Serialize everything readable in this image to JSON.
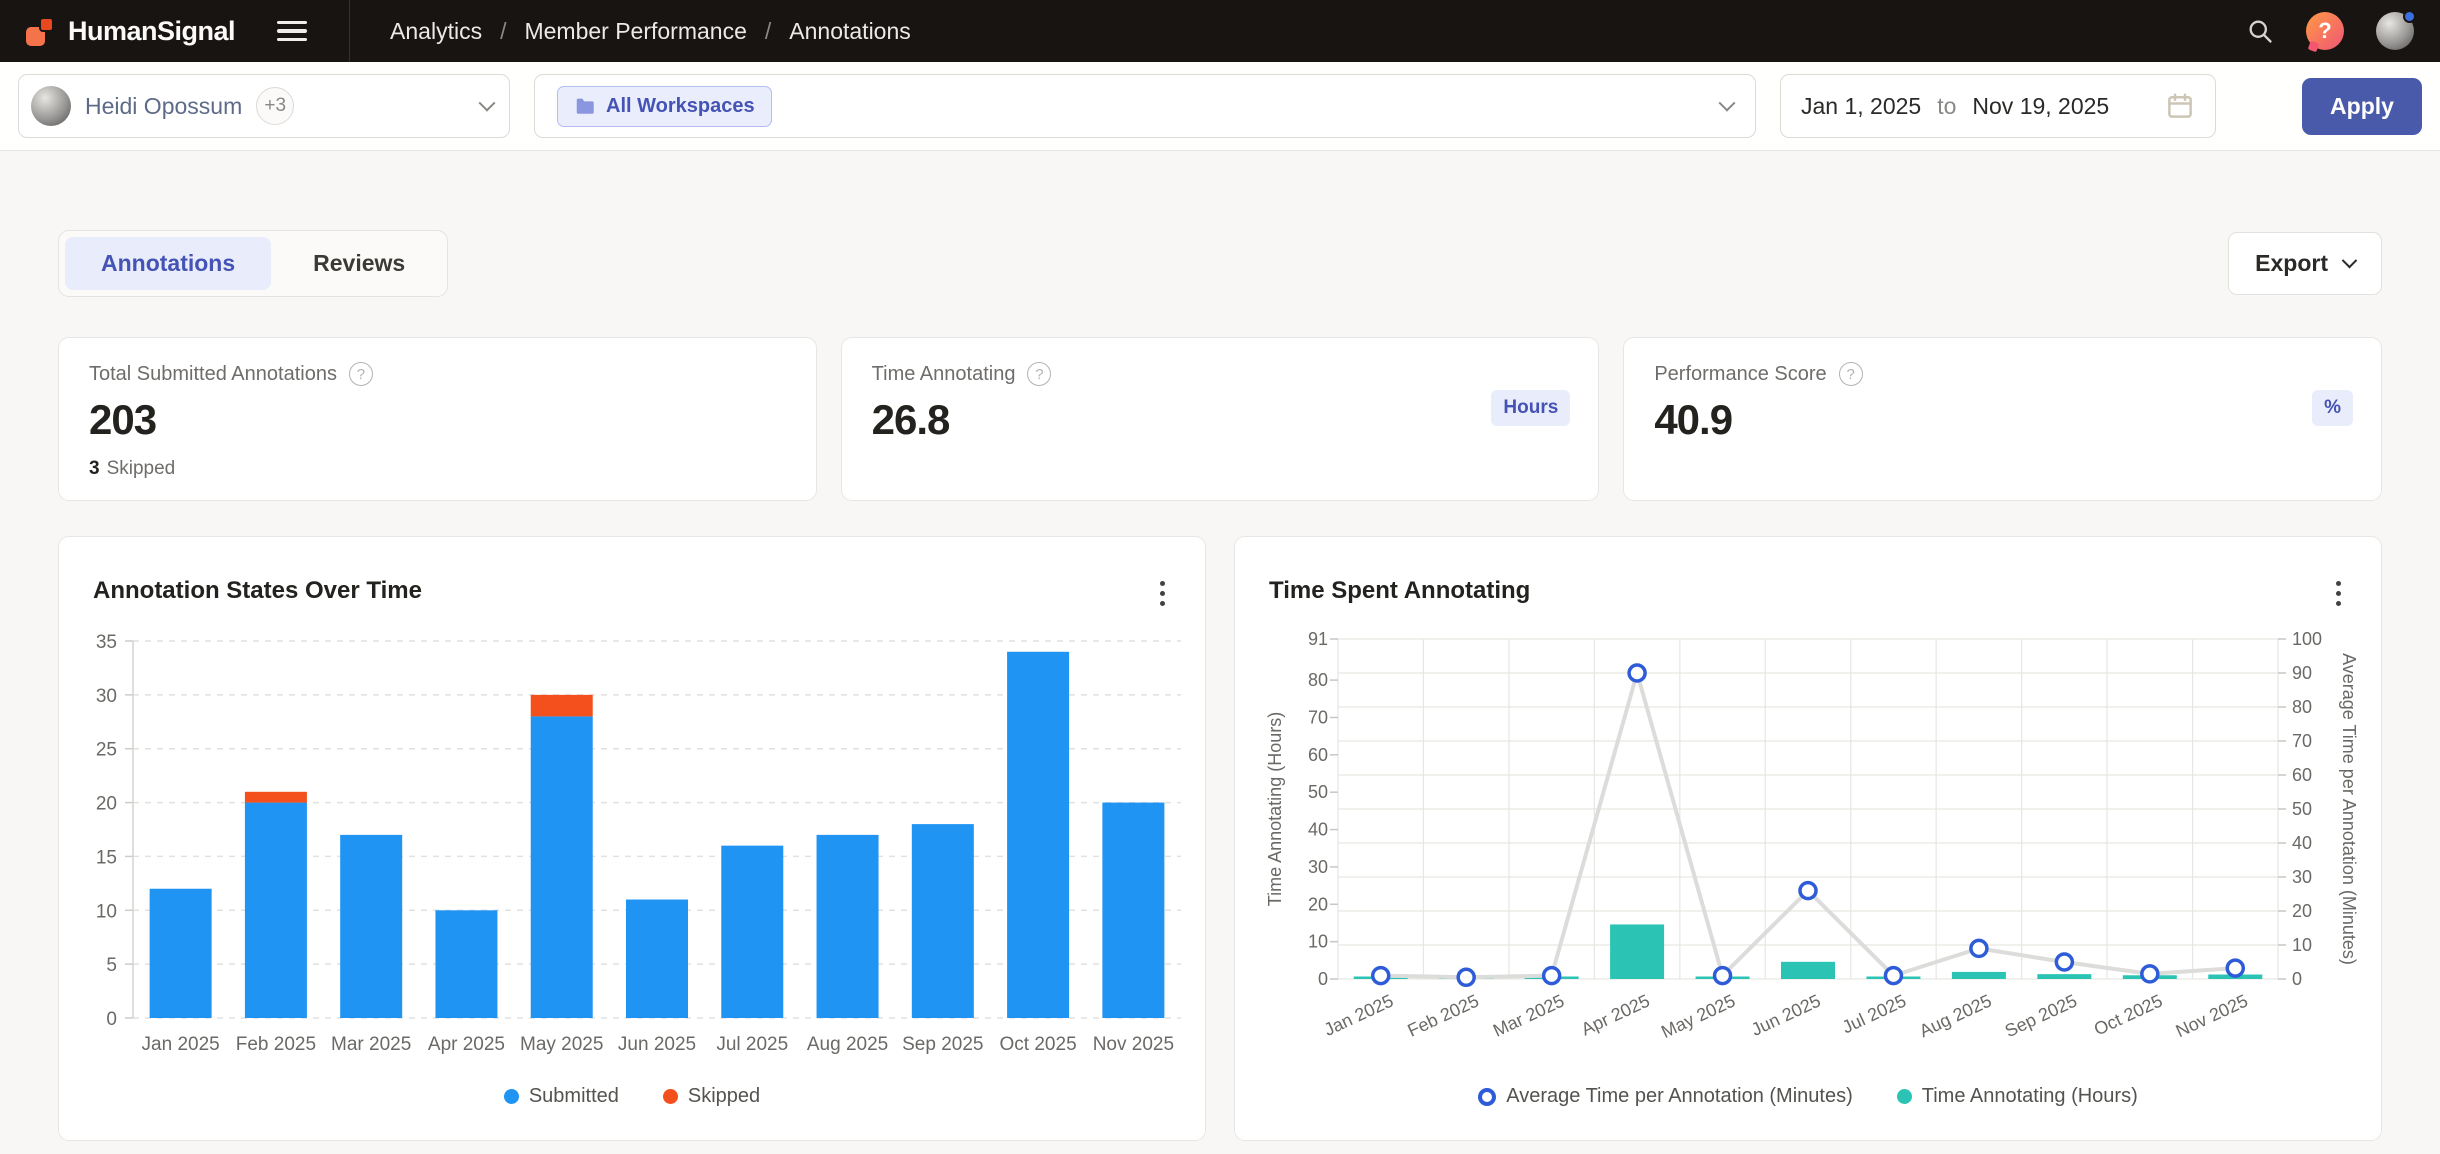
{
  "help_glyph": "?",
  "navbar": {
    "brand": "HumanSignal",
    "breadcrumb": [
      "Analytics",
      "Member Performance",
      "Annotations"
    ],
    "separator": "/"
  },
  "filters": {
    "member": {
      "name": "Heidi Opossum",
      "extra_badge": "+3"
    },
    "workspace": {
      "chip": "All Workspaces"
    },
    "date_range": {
      "start": "Jan 1, 2025",
      "to_label": "to",
      "end": "Nov 19, 2025"
    },
    "apply_label": "Apply"
  },
  "tabs": [
    {
      "label": "Annotations",
      "active": true
    },
    {
      "label": "Reviews",
      "active": false
    }
  ],
  "export_label": "Export",
  "stat_cards": [
    {
      "label": "Total Submitted Annotations",
      "value": "203",
      "footnote_value": "3",
      "footnote_label": "Skipped"
    },
    {
      "label": "Time Annotating",
      "value": "26.8",
      "badge": "Hours"
    },
    {
      "label": "Performance Score",
      "value": "40.9",
      "badge": "%"
    }
  ],
  "colors": {
    "navbar_bg": "#171412",
    "page_bg": "#f8f7f5",
    "accent_indigo": "#4a5aab",
    "chip_indigo_bg": "#eaedfb",
    "chip_indigo_text": "#4553b4",
    "submitted_blue": "#2094f3",
    "skipped_orange": "#f4501e",
    "teal": "#2bc4b4",
    "line_gray": "#dcdcda",
    "marker_blue": "#2e5bd7"
  },
  "chart_data": [
    {
      "type": "bar",
      "title": "Annotation States Over Time",
      "categories": [
        "Jan 2025",
        "Feb 2025",
        "Mar 2025",
        "Apr 2025",
        "May 2025",
        "Jun 2025",
        "Jul 2025",
        "Aug 2025",
        "Sep 2025",
        "Oct 2025",
        "Nov 2025"
      ],
      "stacked": true,
      "series": [
        {
          "name": "Submitted",
          "color": "#2094f3",
          "marker": "dot",
          "values": [
            12,
            20,
            17,
            10,
            28,
            11,
            16,
            17,
            18,
            34,
            20
          ]
        },
        {
          "name": "Skipped",
          "color": "#f4501e",
          "marker": "dot",
          "values": [
            0,
            1,
            0,
            0,
            2,
            0,
            0,
            0,
            0,
            0,
            0
          ]
        }
      ],
      "xlabel": "",
      "ylabel": "",
      "ylim": [
        0,
        35
      ],
      "yticks": [
        0,
        5,
        10,
        15,
        20,
        25,
        30,
        35
      ],
      "grid": "dashed-horizontal",
      "legend_position": "bottom"
    },
    {
      "type": "combo",
      "title": "Time Spent Annotating",
      "categories": [
        "Jan 2025",
        "Feb 2025",
        "Mar 2025",
        "Apr 2025",
        "May 2025",
        "Jun 2025",
        "Jul 2025",
        "Aug 2025",
        "Sep 2025",
        "Oct 2025",
        "Nov 2025"
      ],
      "series": [
        {
          "name": "Average Time per Annotation (Minutes)",
          "type": "line",
          "axis": "right",
          "color": "#2e5bd7",
          "line_color": "#dcdcda",
          "marker": "open-circle",
          "values": [
            1,
            0.5,
            1,
            90,
            1,
            26,
            1,
            9,
            5,
            1.5,
            3.2
          ]
        },
        {
          "name": "Time Annotating (Hours)",
          "type": "bar",
          "axis": "left",
          "color": "#2bc4b4",
          "marker": "dot",
          "values": [
            0.4,
            0.6,
            0.2,
            14.6,
            0.6,
            4.6,
            0.2,
            1.9,
            1.3,
            1.0,
            1.2
          ]
        }
      ],
      "left_axis": {
        "label": "Time Annotating (Hours)",
        "ticks": [
          0,
          10,
          20,
          30,
          40,
          50,
          60,
          70,
          80,
          91
        ],
        "max": 91
      },
      "right_axis": {
        "label": "Average Time per Annotation (Minutes)",
        "ticks": [
          0,
          10,
          20,
          30,
          40,
          50,
          60,
          70,
          80,
          90,
          100
        ],
        "max": 100
      },
      "grid": "full",
      "legend_position": "bottom"
    }
  ]
}
